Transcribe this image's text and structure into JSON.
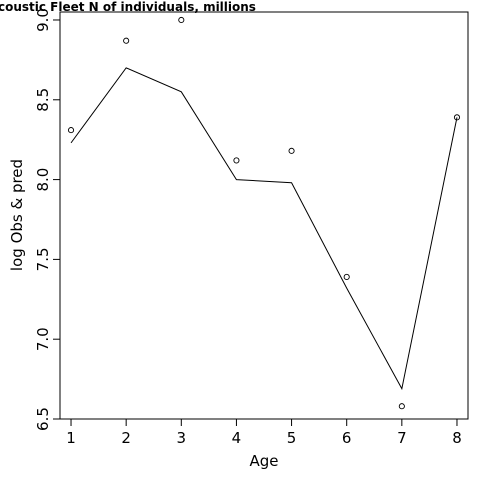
{
  "chart_data": {
    "type": "line",
    "title": "coustic Fleet   N of individuals, millions",
    "xlabel": "Age",
    "ylabel": "log Obs & pred",
    "xlim": [
      0.8,
      8.2
    ],
    "ylim": [
      6.5,
      9.05
    ],
    "x_ticks": [
      1,
      2,
      3,
      4,
      5,
      6,
      7,
      8
    ],
    "x_tick_labels": [
      "1",
      "2",
      "3",
      "4",
      "5",
      "6",
      "7",
      "8"
    ],
    "y_ticks": [
      6.5,
      7.0,
      7.5,
      8.0,
      8.5,
      9.0
    ],
    "y_tick_labels": [
      "6.5",
      "7.0",
      "7.5",
      "8.0",
      "8.5",
      "9.0"
    ],
    "grid": false,
    "series": [
      {
        "type": "scatter",
        "marker": "open-circle",
        "x": [
          1,
          2,
          3,
          4,
          5,
          6,
          7,
          8
        ],
        "y": [
          8.31,
          8.87,
          9.0,
          8.12,
          8.18,
          7.39,
          6.58,
          8.39
        ]
      },
      {
        "type": "line",
        "x": [
          1,
          2,
          3,
          4,
          5,
          6,
          7,
          8
        ],
        "y": [
          8.23,
          8.7,
          8.55,
          8.0,
          7.98,
          7.32,
          6.69,
          8.39
        ]
      }
    ]
  }
}
